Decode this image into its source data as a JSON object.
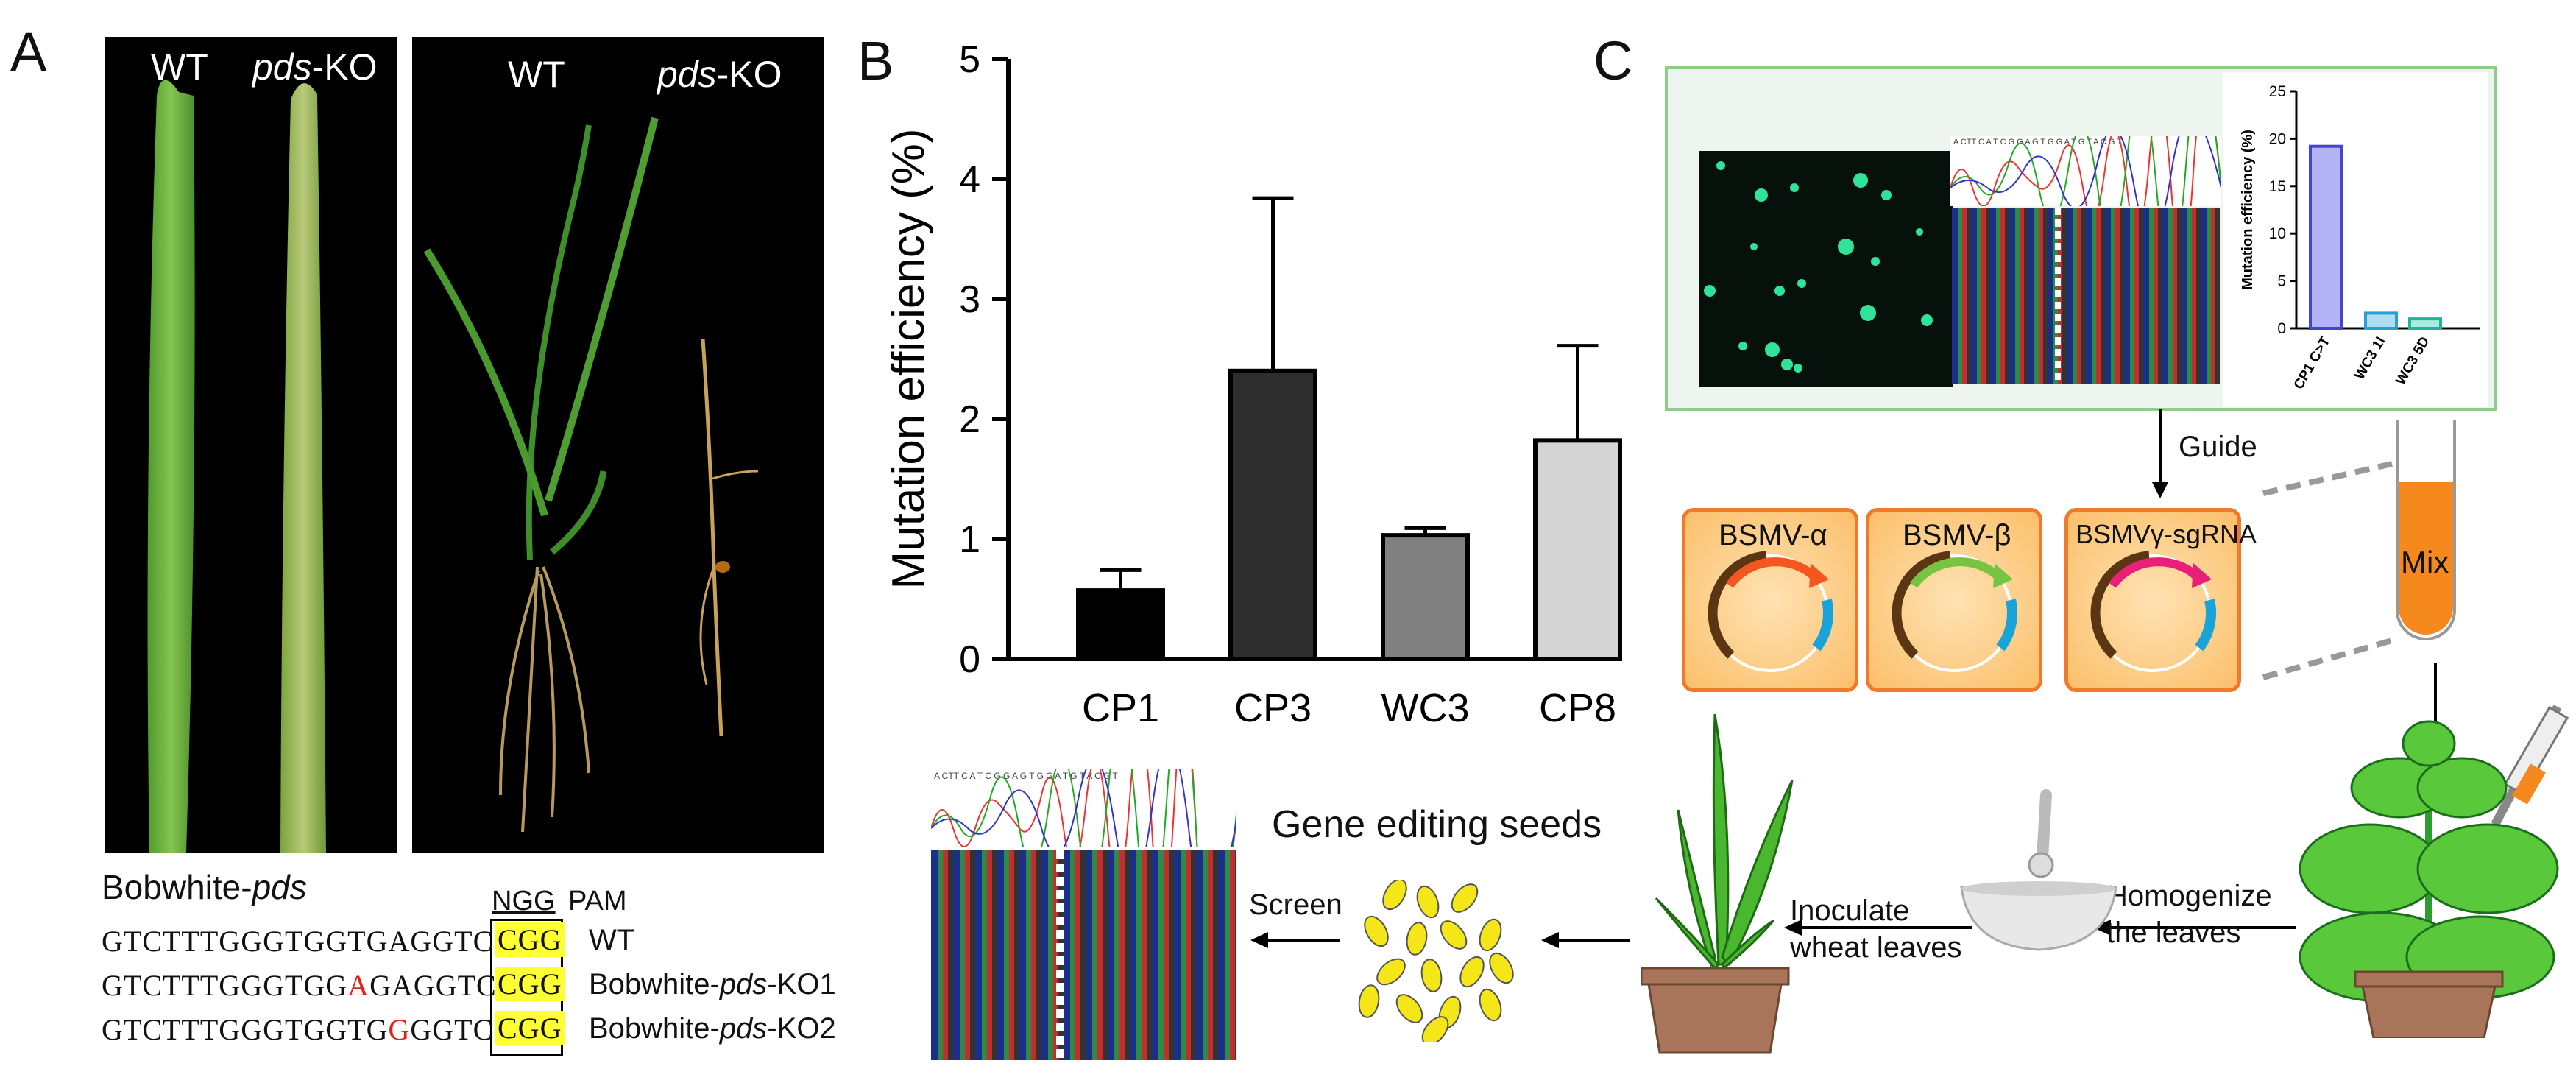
{
  "panelA": {
    "label": "A",
    "photo1_labels": {
      "wt": "WT",
      "ko_italic": "pds",
      "ko_suffix": "-KO"
    },
    "photo2_labels": {
      "wt": "WT",
      "ko_italic": "pds",
      "ko_suffix": "-KO"
    },
    "seq_title_prefix": "Bobwhite-",
    "seq_title_italic": "pds",
    "pam_box_label": "NGG",
    "pam_label": "PAM",
    "sequences": [
      {
        "before": "GTCTTTGGGTGGTGAGGTC",
        "mut": "",
        "after": "",
        "pam": "CGG",
        "name_prefix": "WT",
        "name_italic": "",
        "name_suffix": ""
      },
      {
        "before": "GTCTTTGGGTGG",
        "mut": "A",
        "after": "GAGGTC",
        "pam": "CGG",
        "name_prefix": "Bobwhite-",
        "name_italic": "pds",
        "name_suffix": "-KO1"
      },
      {
        "before": "GTCTTTGGGTGGTG",
        "mut": "G",
        "after": "GGTC",
        "pam": "CGG",
        "name_prefix": "Bobwhite-",
        "name_italic": "pds",
        "name_suffix": "-KO2"
      }
    ]
  },
  "panelB": {
    "label": "B",
    "chart_data": {
      "type": "bar",
      "ylabel": "Mutation efficiency (%)",
      "xlabel": "",
      "categories": [
        "CP1",
        "CP3",
        "WC3",
        "CP8"
      ],
      "values": [
        0.57,
        2.4,
        1.03,
        1.82
      ],
      "error_upper": [
        0.74,
        3.84,
        1.09,
        2.61
      ],
      "bar_colors": [
        "#000000",
        "#2e2e2e",
        "#808080",
        "#d4d4d4"
      ],
      "ylim": [
        0,
        5
      ],
      "yticks": [
        "0",
        "1",
        "2",
        "3",
        "4",
        "5"
      ],
      "grid": false
    }
  },
  "panelC": {
    "label": "C",
    "inset_chart": {
      "type": "bar",
      "ylabel": "Mutation efficiency (%)",
      "categories": [
        "CP1 C>T",
        "WC3 1I",
        "WC3 5D"
      ],
      "values": [
        19.2,
        1.6,
        1.0
      ],
      "bar_colors": [
        "#b3b3f5",
        "#b0ddf2",
        "#a9ecde"
      ],
      "edge_colors": [
        "#4444cc",
        "#2a9fd6",
        "#20b39a"
      ],
      "ylim": [
        0,
        25
      ],
      "yticks": [
        "0",
        "5",
        "10",
        "15",
        "20",
        "25"
      ]
    },
    "chromatogram_seq": "A CTT C A T C G G A G T G G A T G T A C G T",
    "guide_label": "Guide",
    "plasmids": [
      "BSMV-α",
      "BSMV-β",
      "BSMVγ-sgRNA"
    ],
    "mix_label": "Mix",
    "homogenize_label": [
      "Homogenize",
      "the leaves"
    ],
    "inoculate_label": [
      "Inoculate",
      "wheat leaves"
    ],
    "screen_label": "Screen",
    "seeds_label": "Gene editing seeds",
    "colors": {
      "panel_border": "#8fcc8a",
      "panel_bg": "#eef4ee",
      "plasmid_fill": "#fbbf6a",
      "plasmid_border": "#f07a2a",
      "mix_fill": "#f5891e"
    }
  }
}
